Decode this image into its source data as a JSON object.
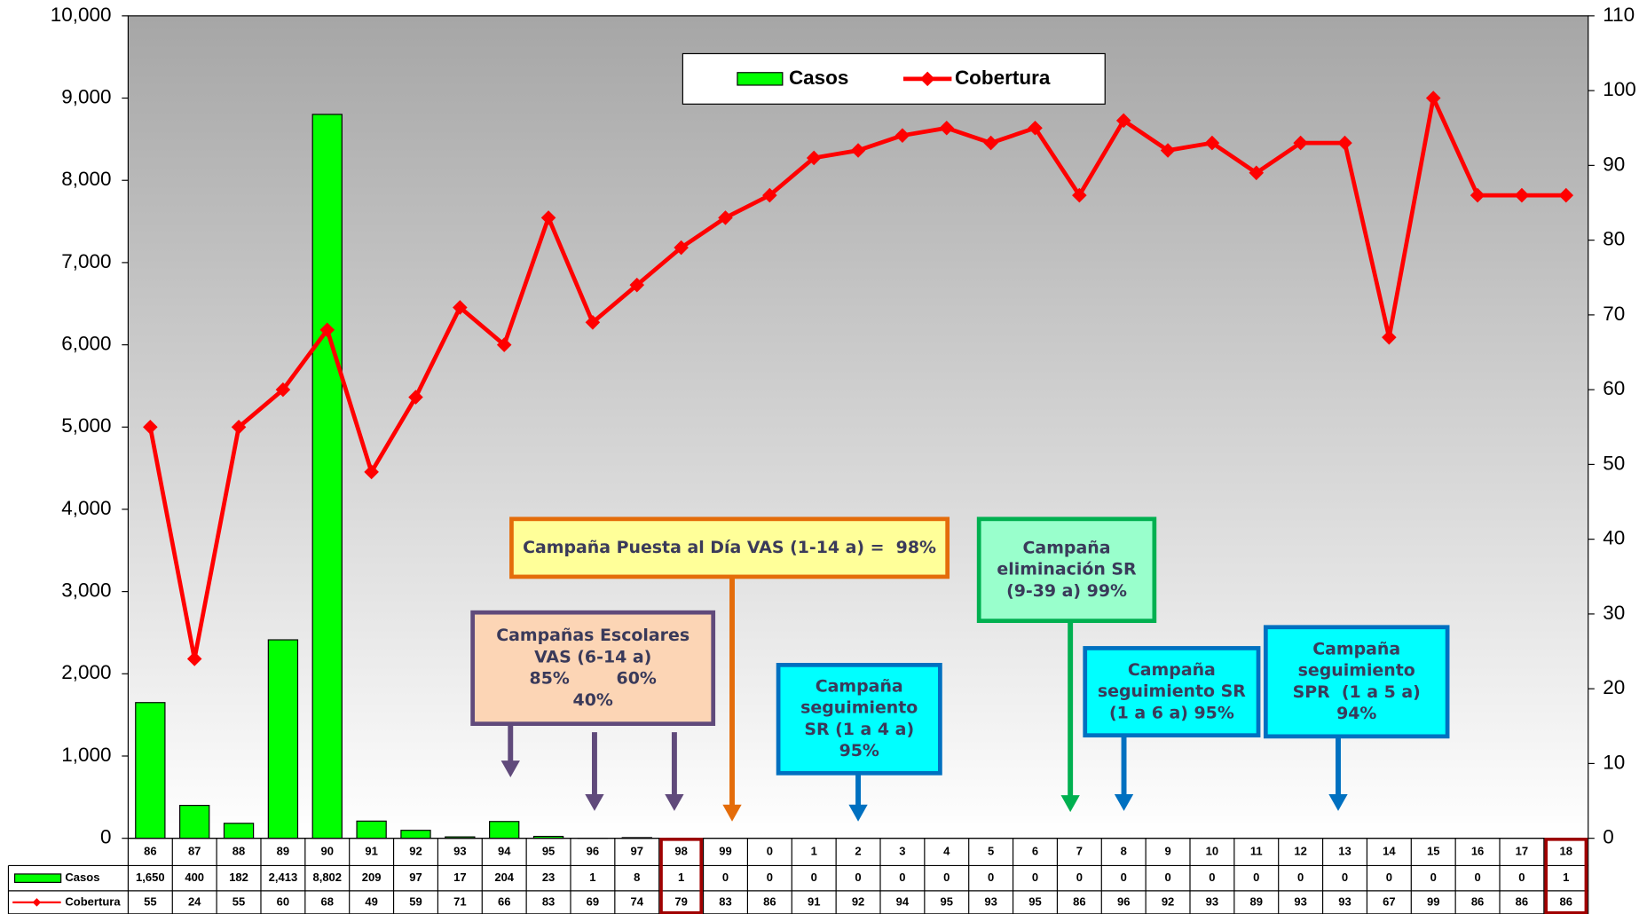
{
  "chart_data": {
    "type": "bar-line",
    "categories": [
      "86",
      "87",
      "88",
      "89",
      "90",
      "91",
      "92",
      "93",
      "94",
      "95",
      "96",
      "97",
      "98",
      "99",
      "0",
      "1",
      "2",
      "3",
      "4",
      "5",
      "6",
      "7",
      "8",
      "9",
      "10",
      "11",
      "12",
      "13",
      "14",
      "15",
      "16",
      "17",
      "18"
    ],
    "series": [
      {
        "name": "Casos",
        "type": "bar",
        "color": "#00ff00",
        "values": [
          1650,
          400,
          182,
          2413,
          8802,
          209,
          97,
          17,
          204,
          23,
          1,
          8,
          1,
          0,
          0,
          0,
          0,
          0,
          0,
          0,
          0,
          0,
          0,
          0,
          0,
          0,
          0,
          0,
          0,
          0,
          0,
          0,
          1
        ],
        "value_labels": [
          "1,650",
          "400",
          "182",
          "2,413",
          "8,802",
          "209",
          "97",
          "17",
          "204",
          "23",
          "1",
          "8",
          "1",
          "0",
          "0",
          "0",
          "0",
          "0",
          "0",
          "0",
          "0",
          "0",
          "0",
          "0",
          "0",
          "0",
          "0",
          "0",
          "0",
          "0",
          "0",
          "0",
          "1"
        ]
      },
      {
        "name": "Cobertura",
        "type": "line",
        "color": "#ff0000",
        "axis": "y2",
        "values": [
          55,
          24,
          55,
          60,
          68,
          49,
          59,
          71,
          66,
          83,
          69,
          74,
          79,
          83,
          86,
          91,
          92,
          94,
          95,
          93,
          95,
          86,
          96,
          92,
          93,
          89,
          93,
          93,
          67,
          99,
          86,
          86,
          86
        ]
      }
    ],
    "ylim": [
      0,
      10000
    ],
    "yticks": [
      0,
      {
        "value": 1000,
        "label": "1,000"
      },
      {
        "value": 2000,
        "label": "2,000"
      },
      {
        "value": 3000,
        "label": "3,000"
      },
      {
        "value": 4000,
        "label": "4,000"
      },
      {
        "value": 5000,
        "label": "5,000"
      },
      {
        "value": 6000,
        "label": "6,000"
      },
      {
        "value": 7000,
        "label": "7,000"
      },
      {
        "value": 8000,
        "label": "8,000"
      },
      {
        "value": 9000,
        "label": "9,000"
      },
      {
        "value": 10000,
        "label": "10,000"
      }
    ],
    "y2lim": [
      0,
      110
    ],
    "y2ticks": [
      0,
      10,
      20,
      30,
      40,
      50,
      60,
      70,
      80,
      90,
      100,
      110
    ],
    "legend": "top",
    "annotations": [
      {
        "lines": [
          "Campaña Puesta al Día VAS (1-14 a) =  98%"
        ]
      },
      {
        "lines": [
          "Campañas Escolares",
          "VAS (6-14 a)",
          "85%        60%",
          "40%"
        ]
      },
      {
        "lines": [
          "Campaña",
          "seguimiento",
          "SR (1 a 4 a)",
          "95%"
        ]
      },
      {
        "lines": [
          "Campaña",
          "eliminación SR",
          "(9-39 a) 99%"
        ]
      },
      {
        "lines": [
          "Campaña",
          "seguimiento SR",
          "(1 a 6 a) 95%"
        ]
      },
      {
        "lines": [
          "Campaña",
          "seguimiento",
          "SPR  (1 a 5 a)",
          "94%"
        ]
      }
    ]
  }
}
